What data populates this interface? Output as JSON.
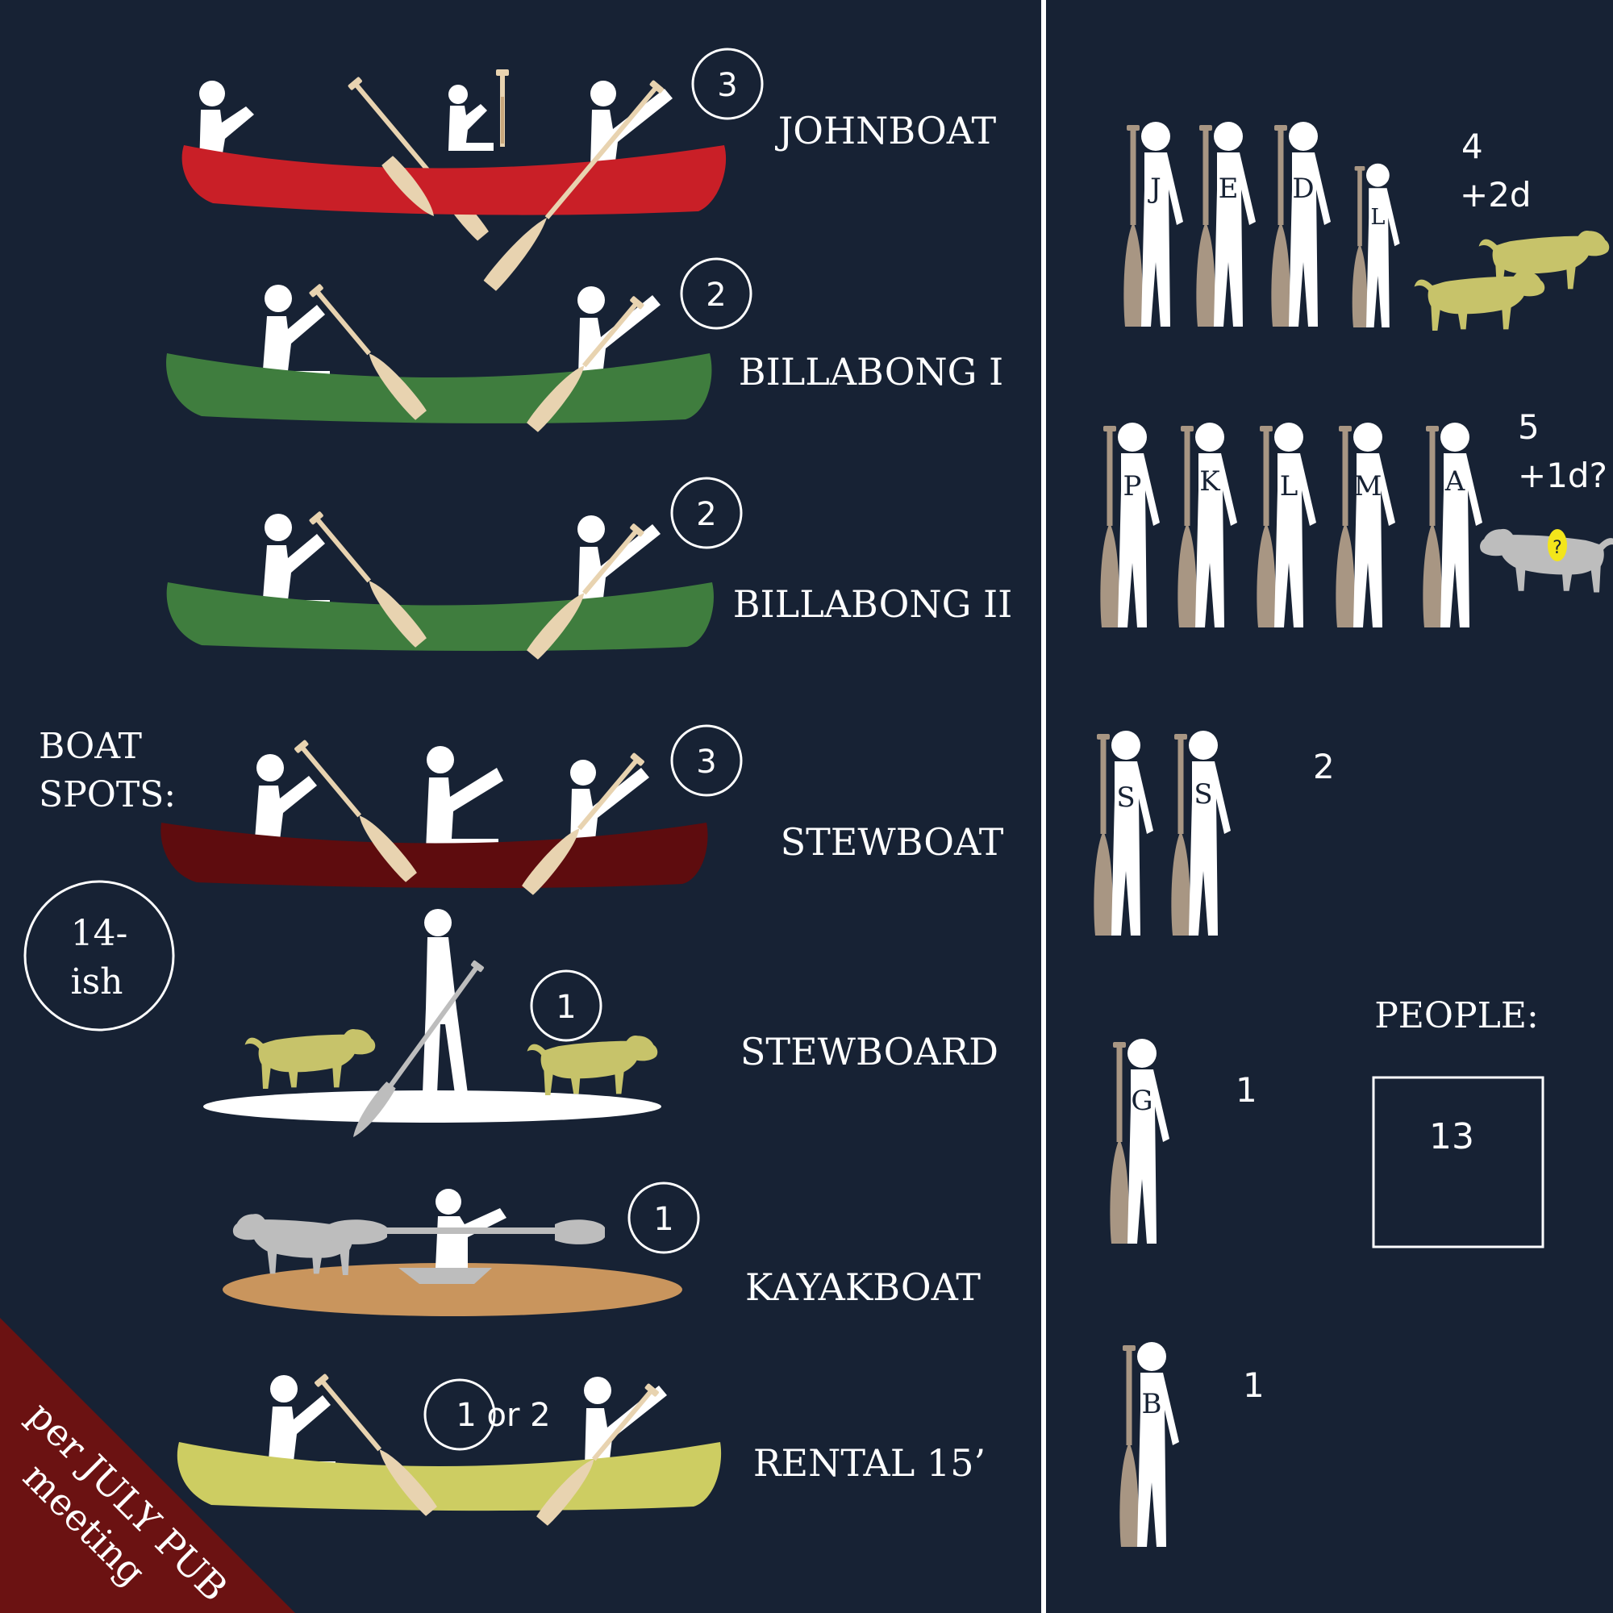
{
  "colors": {
    "background": "#172234",
    "divider": "#ffffff",
    "figure": "#ffffff",
    "oar_light": "#e8d3b0",
    "oar_dark": "#a89683",
    "dog_yellow": "#c7c36a",
    "dog_grey": "#bdbdbd",
    "question_badge": "#f3e51b",
    "corner_banner": "#6b1212",
    "boat_johnboat": "#c91f27",
    "boat_billabong": "#3f7d3e",
    "boat_stewboat": "#5e0c0e",
    "boat_stewboard": "#ffffff",
    "boat_kayakboat": "#c9955d",
    "boat_rental": "#cdcd62"
  },
  "boats": [
    {
      "name": "JOHNBOAT",
      "spots": "3"
    },
    {
      "name": "BILLABONG I",
      "spots": "2"
    },
    {
      "name": "BILLABONG II",
      "spots": "2"
    },
    {
      "name": "STEWBOAT",
      "spots": "3"
    },
    {
      "name": "STEWBOARD",
      "spots": "1"
    },
    {
      "name": "KAYAKBOAT",
      "spots": "1"
    },
    {
      "name": "RENTAL 15’",
      "spots": "1 or 2"
    }
  ],
  "boat_spots": {
    "label_line1": "BOAT",
    "label_line2": "SPOTS:",
    "total_line1": "14-",
    "total_line2": "ish"
  },
  "groups": [
    {
      "letters": [
        "J",
        "E",
        "D",
        "L"
      ],
      "count_line1": "4",
      "count_line2": "+2d"
    },
    {
      "letters": [
        "P",
        "K",
        "L",
        "M",
        "A"
      ],
      "count_line1": "5",
      "count_line2": "+1d?"
    },
    {
      "letters": [
        "S",
        "S"
      ],
      "count_line1": "2",
      "count_line2": ""
    },
    {
      "letters": [
        "G"
      ],
      "count_line1": "1",
      "count_line2": ""
    },
    {
      "letters": [
        "B"
      ],
      "count_line1": "1",
      "count_line2": ""
    }
  ],
  "people": {
    "label": "PEOPLE:",
    "total": "13"
  },
  "badge": {
    "question": "?"
  },
  "banner": {
    "line1": "per JULY PUB",
    "line2": "meeting"
  }
}
